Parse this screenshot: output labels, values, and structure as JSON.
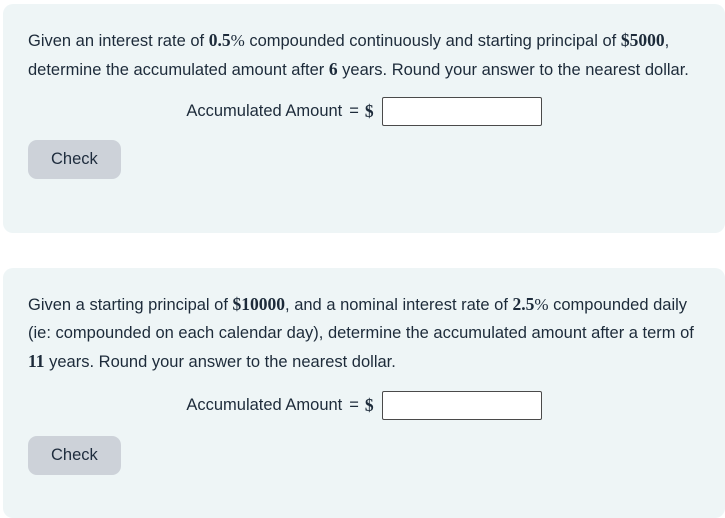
{
  "colors": {
    "page_background": "#ffffff",
    "card_background": "#eef5f6",
    "button_background": "#cdd2d9",
    "text": "#1d2b3a",
    "input_border": "#4a4a4a"
  },
  "problems": [
    {
      "statement_segments": [
        {
          "text": "Given an interest rate of ",
          "style": "normal"
        },
        {
          "text": "0.5",
          "style": "bold-serif"
        },
        {
          "text": "%",
          "style": "serif"
        },
        {
          "text": " compounded continuously and starting principal of ",
          "style": "normal"
        },
        {
          "text": "$5000",
          "style": "bold-serif"
        },
        {
          "text": ", determine the accumulated amount after ",
          "style": "normal"
        },
        {
          "text": "6",
          "style": "bold-serif"
        },
        {
          "text": " years. Round your answer to the nearest dollar.",
          "style": "normal"
        }
      ],
      "answer": {
        "label": "Accumulated Amount",
        "equals": "=",
        "currency": "$",
        "value": ""
      },
      "check_label": "Check"
    },
    {
      "statement_segments": [
        {
          "text": "Given a starting principal of ",
          "style": "normal"
        },
        {
          "text": "$10000",
          "style": "bold-serif"
        },
        {
          "text": ", and a nominal interest rate of ",
          "style": "normal"
        },
        {
          "text": "2.5",
          "style": "bold-serif"
        },
        {
          "text": "%",
          "style": "serif"
        },
        {
          "text": " compounded daily (ie: compounded on each calendar day), determine the accumulated amount after a term of ",
          "style": "normal"
        },
        {
          "text": "11",
          "style": "bold-serif"
        },
        {
          "text": " years. Round your answer to the nearest dollar.",
          "style": "normal"
        }
      ],
      "answer": {
        "label": "Accumulated Amount",
        "equals": "=",
        "currency": "$",
        "value": ""
      },
      "check_label": "Check"
    }
  ]
}
